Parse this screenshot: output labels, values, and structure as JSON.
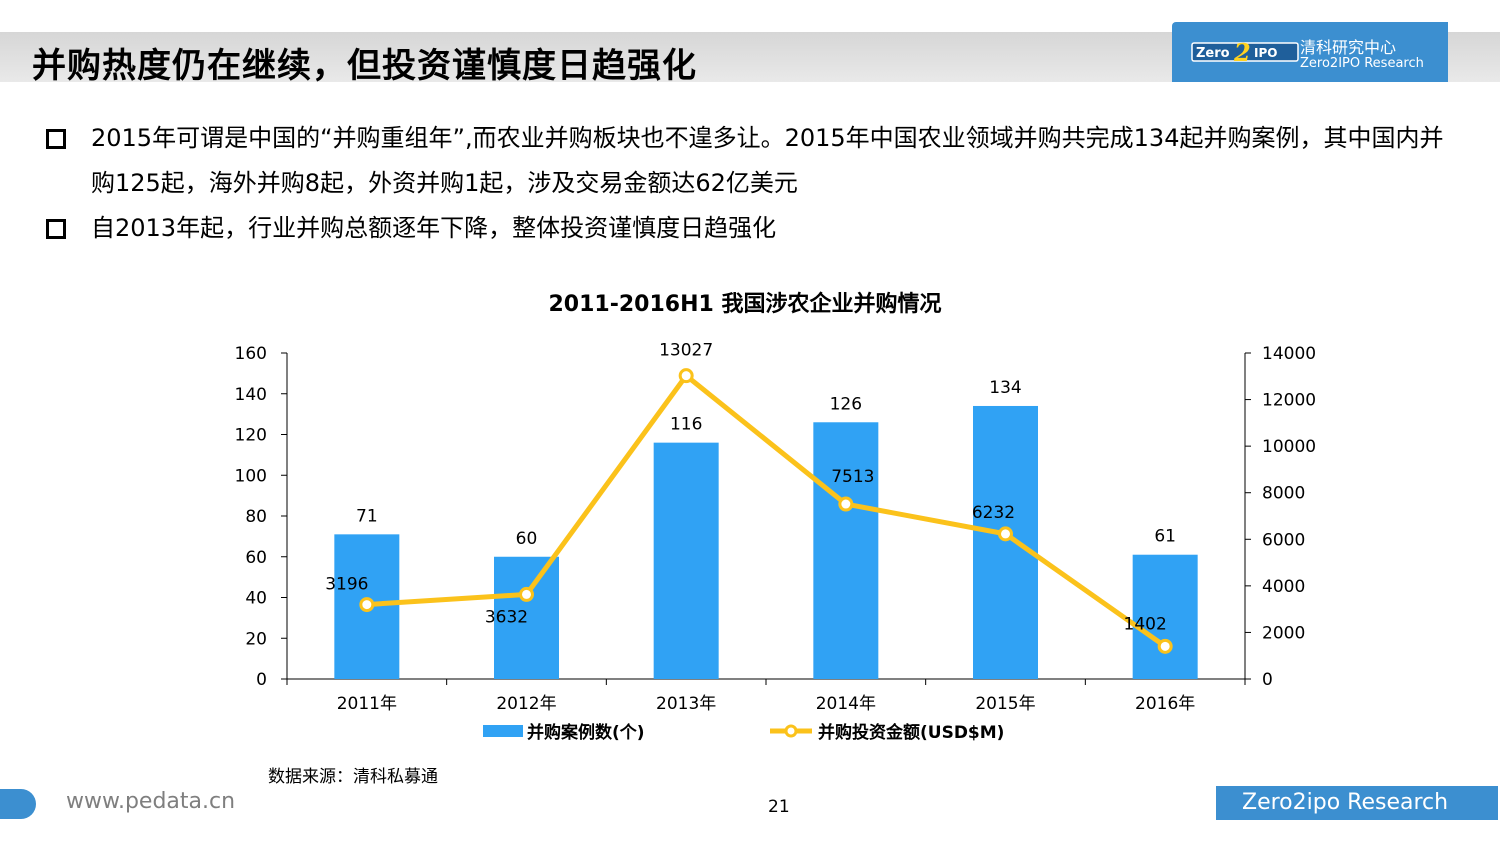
{
  "header": {
    "title": "并购热度仍在继续，但投资谨慎度日趋强化",
    "logo_cn": "清科研究中心",
    "logo_en": "Zero2IPO Research",
    "logo_mark": "Zero2IPO"
  },
  "bullets": [
    "2015年可谓是中国的“并购重组年”,而农业并购板块也不遑多让。2015年中国农业领域并购共完成134起并购案例，其中国内并购125起，海外并购8起，外资并购1起，涉及交易金额达62亿美元",
    "自2013年起，行业并购总额逐年下降，整体投资谨慎度日趋强化"
  ],
  "chart_data": {
    "type": "bar+line",
    "title": "2011-2016H1 我国涉农企业并购情况",
    "categories": [
      "2011年",
      "2012年",
      "2013年",
      "2014年",
      "2015年",
      "2016年"
    ],
    "series": [
      {
        "name": "并购案例数(个)",
        "type": "bar",
        "axis": "left",
        "color": "#30a2f4",
        "values": [
          71,
          60,
          116,
          126,
          134,
          61
        ]
      },
      {
        "name": "并购投资金额(USD$M)",
        "type": "line",
        "axis": "right",
        "color": "#fbc21b",
        "values": [
          3196,
          3632,
          13027,
          7513,
          6232,
          1402
        ]
      }
    ],
    "y_left": {
      "min": 0,
      "max": 160,
      "ticks": [
        0,
        20,
        40,
        60,
        80,
        100,
        120,
        140,
        160
      ]
    },
    "y_right": {
      "min": 0,
      "max": 14000,
      "ticks": [
        0,
        2000,
        4000,
        6000,
        8000,
        10000,
        12000,
        14000
      ]
    },
    "legend_position": "bottom"
  },
  "source": "数据来源：清科私募通",
  "footer": {
    "url": "www.pedata.cn",
    "page": "21",
    "brand": "Zero2ipo Research"
  },
  "colors": {
    "accent": "#3c8fd0",
    "bar": "#30a2f4",
    "line": "#fbc21b"
  }
}
